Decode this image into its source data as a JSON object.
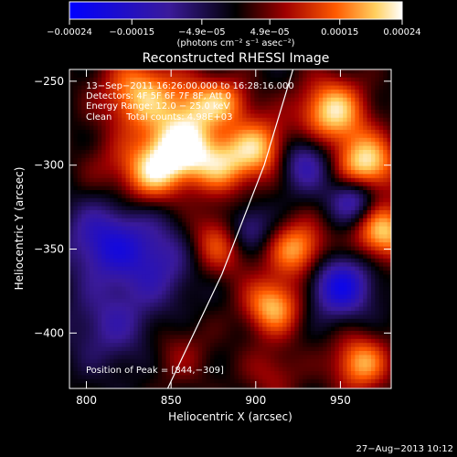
{
  "chart_data": {
    "type": "heatmap",
    "title": "Reconstructed RHESSI Image",
    "xlabel": "Heliocentric X (arcsec)",
    "ylabel": "Heliocentric Y (arcsec)",
    "xlim": [
      790,
      980
    ],
    "ylim": [
      -433,
      -243
    ],
    "x_ticks": [
      800,
      850,
      900,
      950
    ],
    "y_ticks": [
      -250,
      -300,
      -350,
      -400
    ],
    "x_tick_labels": [
      "800",
      "850",
      "900",
      "950"
    ],
    "y_tick_labels": [
      "−250",
      "−300",
      "−350",
      "−400"
    ],
    "colorbar": {
      "range": [
        -0.00024,
        0.00024
      ],
      "ticks": [
        -0.00024,
        -0.00015,
        -4.9e-05,
        4.9e-05,
        0.00015,
        0.00024
      ],
      "tick_labels": [
        "−0.00024",
        "−0.00015",
        "−4.9e−05",
        "4.9e−05",
        "0.00015",
        "0.00024"
      ],
      "unit_label": "(photons cm⁻² s⁻¹ asec⁻²)"
    },
    "info_lines": [
      "13−Sep−2011 16:26:00.000 to 16:28:16.000",
      "Detectors: 4F 5F 6F 7F 8F, Att 0",
      "Energy Range: 12.0 − 25.0 keV",
      "Clean     Total counts: 4.98E+03"
    ],
    "peak_label": "Position of Peak = [844,−309]",
    "limb_curve": [
      [
        848,
        -433
      ],
      [
        880,
        -365
      ],
      [
        905,
        -300
      ],
      [
        922,
        -243
      ]
    ],
    "sources": [
      [
        832,
        -258,
        0.8,
        16
      ],
      [
        866,
        -264,
        0.55,
        12
      ],
      [
        856,
        -290,
        0.95,
        14
      ],
      [
        838,
        -305,
        0.7,
        13
      ],
      [
        880,
        -300,
        0.6,
        12
      ],
      [
        903,
        -290,
        0.8,
        13
      ],
      [
        945,
        -268,
        0.9,
        14
      ],
      [
        965,
        -300,
        0.95,
        13
      ],
      [
        928,
        -298,
        -0.6,
        12
      ],
      [
        958,
        -320,
        -0.7,
        10
      ],
      [
        975,
        -340,
        0.85,
        12
      ],
      [
        925,
        -350,
        0.75,
        12
      ],
      [
        910,
        -384,
        0.8,
        12
      ],
      [
        950,
        -372,
        -0.8,
        13
      ],
      [
        878,
        -346,
        0.6,
        14
      ],
      [
        842,
        -356,
        -0.5,
        18
      ],
      [
        810,
        -345,
        -0.6,
        16
      ],
      [
        815,
        -395,
        -0.4,
        18
      ],
      [
        855,
        -412,
        0.25,
        14
      ],
      [
        910,
        -424,
        0.3,
        12
      ],
      [
        962,
        -418,
        0.75,
        12
      ],
      [
        812,
        -300,
        0.2,
        12
      ],
      [
        895,
        -338,
        -0.55,
        10
      ],
      [
        884,
        -262,
        0.5,
        10
      ]
    ]
  },
  "footer": {
    "date_stamp": "27−Aug−2013 10:12"
  }
}
